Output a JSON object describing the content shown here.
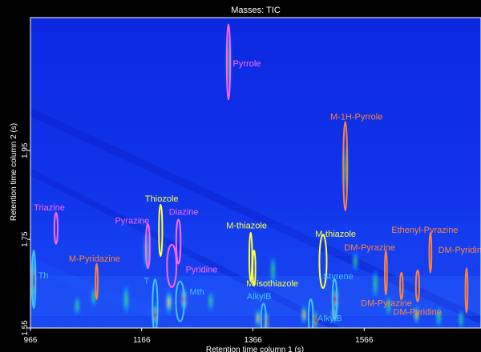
{
  "chart_data": {
    "type": "heatmap",
    "title": "Masses: TIC",
    "xlabel": "Retention time column 1 (s)",
    "ylabel": "Retention time column 2 (s)",
    "xlim": [
      966,
      1776
    ],
    "ylim": [
      1.55,
      2.25
    ],
    "x_ticks": [
      "966",
      "1166",
      "1366",
      "1566"
    ],
    "y_ticks": [
      "1.55",
      "1.75",
      "1.95"
    ],
    "colormap": [
      "#1432e6",
      "#00c8ff",
      "#32ff64",
      "#ffff00",
      "#ff2000"
    ],
    "peaks": [
      {
        "x": 1322,
        "y": 2.15,
        "w": 4,
        "h": 0.06,
        "i": 0.45
      },
      {
        "x": 1532,
        "y": 1.91,
        "w": 3,
        "h": 0.05,
        "i": 0.3
      },
      {
        "x": 970,
        "y": 1.655,
        "w": 5,
        "h": 0.06,
        "i": 0.9
      },
      {
        "x": 1138,
        "y": 1.615,
        "w": 5,
        "h": 0.03,
        "i": 0.3
      },
      {
        "x": 1175,
        "y": 1.725,
        "w": 6,
        "h": 0.04,
        "i": 0.3
      },
      {
        "x": 1190,
        "y": 1.58,
        "w": 5,
        "h": 0.025,
        "i": 1.0
      },
      {
        "x": 1215,
        "y": 1.608,
        "w": 6,
        "h": 0.025,
        "i": 0.7
      },
      {
        "x": 1242,
        "y": 1.615,
        "w": 6,
        "h": 0.025,
        "i": 0.85
      },
      {
        "x": 1290,
        "y": 1.61,
        "w": 4,
        "h": 0.02,
        "i": 0.35
      },
      {
        "x": 1375,
        "y": 1.572,
        "w": 5,
        "h": 0.02,
        "i": 0.55
      },
      {
        "x": 1390,
        "y": 1.565,
        "w": 4,
        "h": 0.02,
        "i": 0.85
      },
      {
        "x": 1458,
        "y": 1.58,
        "w": 5,
        "h": 0.02,
        "i": 0.7
      },
      {
        "x": 1478,
        "y": 1.568,
        "w": 4,
        "h": 0.02,
        "i": 0.9
      },
      {
        "x": 1515,
        "y": 1.615,
        "w": 5,
        "h": 0.025,
        "i": 0.95
      },
      {
        "x": 1512,
        "y": 1.58,
        "w": 4,
        "h": 0.02,
        "i": 0.6
      },
      {
        "x": 1402,
        "y": 1.68,
        "w": 4,
        "h": 0.03,
        "i": 0.3
      },
      {
        "x": 1586,
        "y": 1.65,
        "w": 4,
        "h": 0.03,
        "i": 0.3
      },
      {
        "x": 1660,
        "y": 1.58,
        "w": 4,
        "h": 0.02,
        "i": 0.5
      },
      {
        "x": 1700,
        "y": 1.575,
        "w": 5,
        "h": 0.02,
        "i": 0.45
      },
      {
        "x": 1740,
        "y": 1.57,
        "w": 4,
        "h": 0.02,
        "i": 0.4
      },
      {
        "x": 1050,
        "y": 1.6,
        "w": 4,
        "h": 0.02,
        "i": 0.3
      },
      {
        "x": 1080,
        "y": 1.62,
        "w": 4,
        "h": 0.02,
        "i": 0.25
      },
      {
        "x": 1610,
        "y": 1.6,
        "w": 4,
        "h": 0.02,
        "i": 0.3
      },
      {
        "x": 1550,
        "y": 1.7,
        "w": 3,
        "h": 0.02,
        "i": 0.25
      }
    ],
    "regions": [
      {
        "label": "Pyrrole",
        "color": "#ff66ff",
        "x": 1322,
        "y": 2.15,
        "rx": 6,
        "ry": 0.085,
        "lx": 1330,
        "ly": 2.14
      },
      {
        "label": "M-1H-Pyrrole",
        "color": "#ff8040",
        "x": 1532,
        "y": 1.915,
        "rx": 7,
        "ry": 0.1,
        "lx": 1505,
        "ly": 2.02
      },
      {
        "label": "Triazine",
        "color": "#ff66ff",
        "x": 1012,
        "y": 1.775,
        "rx": 6,
        "ry": 0.035,
        "lx": 972,
        "ly": 1.815
      },
      {
        "label": "Thiozole",
        "color": "#ffff40",
        "x": 1200,
        "y": 1.77,
        "rx": 6,
        "ry": 0.058,
        "lx": 1172,
        "ly": 1.835
      },
      {
        "label": "Pyrazine",
        "color": "#ff66ff",
        "x": 1177,
        "y": 1.735,
        "rx": 7,
        "ry": 0.05,
        "lx": 1118,
        "ly": 1.785
      },
      {
        "label": "Diazine",
        "color": "#ff66ff",
        "x": 1232,
        "y": 1.745,
        "rx": 8,
        "ry": 0.05,
        "lx": 1215,
        "ly": 1.805
      },
      {
        "label": "Pyridine",
        "color": "#ff66ff",
        "x": 1220,
        "y": 1.69,
        "rx": 17,
        "ry": 0.048,
        "lx": 1245,
        "ly": 1.675
      },
      {
        "label": "M-thiazole",
        "color": "#ffff40",
        "x": 1362,
        "y": 1.71,
        "rx": 5,
        "ry": 0.055,
        "lx": 1318,
        "ly": 1.775
      },
      {
        "label": "M-isothiazole",
        "color": "#ffff40",
        "x": 1368,
        "y": 1.685,
        "rx": 5,
        "ry": 0.04,
        "lx": 1354,
        "ly": 1.644
      },
      {
        "label": "M-thiazole",
        "color": "#ffff40",
        "x": 1492,
        "y": 1.7,
        "rx": 13,
        "ry": 0.06,
        "lx": 1478,
        "ly": 1.756
      },
      {
        "label": "Styrene",
        "color": "#40c0ff",
        "x": 1513,
        "y": 1.615,
        "rx": 8,
        "ry": 0.045,
        "lx": 1492,
        "ly": 1.66
      },
      {
        "label": "M-Pyridazine",
        "color": "#ff8040",
        "x": 1085,
        "y": 1.655,
        "rx": 4,
        "ry": 0.04,
        "lx": 1035,
        "ly": 1.7
      },
      {
        "label": "Th",
        "color": "#40c0ff",
        "x": 972,
        "y": 1.66,
        "rx": 6,
        "ry": 0.065,
        "lx": 980,
        "ly": 1.662
      },
      {
        "label": "T",
        "color": "#40c0ff",
        "x": 1190,
        "y": 1.6,
        "rx": 9,
        "ry": 0.06,
        "lx": 1170,
        "ly": 1.65
      },
      {
        "label": "Mth",
        "color": "#40c0ff",
        "x": 1235,
        "y": 1.61,
        "rx": 15,
        "ry": 0.045,
        "lx": 1252,
        "ly": 1.625
      },
      {
        "label": "AlkylB",
        "color": "#40c0ff",
        "x": 1385,
        "y": 1.57,
        "rx": 9,
        "ry": 0.035,
        "lx": 1355,
        "ly": 1.615
      },
      {
        "label": "AlkylB",
        "color": "#40c0ff",
        "x": 1470,
        "y": 1.575,
        "rx": 8,
        "ry": 0.04,
        "lx": 1482,
        "ly": 1.565
      },
      {
        "label": "DM-Pyrazine",
        "color": "#ff8040",
        "x": 1605,
        "y": 1.675,
        "rx": 4,
        "ry": 0.05,
        "lx": 1530,
        "ly": 1.725
      },
      {
        "label": "Ethenyl-Pyrazine",
        "color": "#ff8040",
        "x": 1685,
        "y": 1.72,
        "rx": 4,
        "ry": 0.045,
        "lx": 1615,
        "ly": 1.765
      },
      {
        "label": "DM-Pyridine",
        "color": "#ff8040",
        "x": 1750,
        "y": 1.635,
        "rx": 4,
        "ry": 0.05,
        "lx": 1699,
        "ly": 1.72
      },
      {
        "label": "DM-Pyrazine",
        "color": "#ff8040",
        "x": 1633,
        "y": 1.645,
        "rx": 5,
        "ry": 0.03,
        "lx": 1560,
        "ly": 1.6
      },
      {
        "label": "DM-Pyridine",
        "color": "#ff8040",
        "x": 1662,
        "y": 1.645,
        "rx": 6,
        "ry": 0.035,
        "lx": 1618,
        "ly": 1.58
      }
    ]
  }
}
